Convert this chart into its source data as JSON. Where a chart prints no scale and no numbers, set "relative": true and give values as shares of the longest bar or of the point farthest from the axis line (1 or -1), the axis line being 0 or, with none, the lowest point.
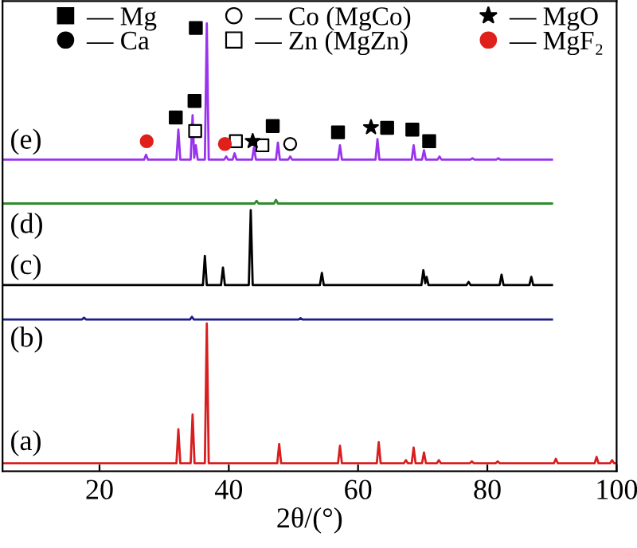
{
  "chart_data": {
    "type": "line",
    "relative": true,
    "xlabel": "2θ/(°)",
    "xlim": [
      5,
      100
    ],
    "xticks": [
      20,
      40,
      60,
      80,
      100
    ],
    "grid": false,
    "legend": "top",
    "tick_labels": "x",
    "series": [
      {
        "color": "#d81e1e",
        "x": [
          5,
          31.9,
          32.2,
          32.5,
          34.1,
          34.4,
          34.7,
          36.3,
          36.6,
          36.9,
          47.5,
          47.8,
          48.1,
          56.9,
          57.2,
          57.5,
          62.9,
          63.2,
          63.5,
          67.1,
          67.4,
          67.7,
          68.3,
          68.6,
          68.9,
          69.9,
          70.2,
          70.5,
          72.2,
          72.5,
          72.8,
          77.3,
          77.6,
          77.9,
          81.3,
          81.6,
          81.9,
          90.3,
          90.6,
          90.9,
          96.6,
          96.9,
          97.2,
          99.0,
          99.3,
          99.6,
          100
        ],
        "values": [
          0.018,
          0.018,
          0.094,
          0.018,
          0.018,
          0.127,
          0.018,
          0.018,
          0.33,
          0.018,
          0.018,
          0.061,
          0.018,
          0.018,
          0.057,
          0.018,
          0.018,
          0.065,
          0.018,
          0.018,
          0.025,
          0.018,
          0.018,
          0.053,
          0.018,
          0.018,
          0.042,
          0.018,
          0.018,
          0.025,
          0.018,
          0.018,
          0.022,
          0.018,
          0.018,
          0.022,
          0.018,
          0.018,
          0.028,
          0.018,
          0.018,
          0.032,
          0.018,
          0.018,
          0.025,
          0.018,
          0.018
        ]
      },
      {
        "color": "#1c1c8c",
        "x": [
          5,
          17.3,
          17.6,
          17.9,
          34.0,
          34.3,
          34.6,
          50.8,
          51.1,
          51.4,
          90
        ],
        "values": [
          0.339,
          0.339,
          0.343,
          0.339,
          0.339,
          0.345,
          0.339,
          0.339,
          0.342,
          0.339,
          0.339
        ]
      },
      {
        "color": "#000000",
        "x": [
          5,
          36.0,
          36.3,
          36.6,
          38.8,
          39.1,
          39.4,
          43.1,
          43.4,
          43.7,
          54.1,
          54.4,
          54.7,
          69.8,
          70.1,
          70.4,
          70.6,
          70.9,
          76.8,
          77.1,
          77.4,
          81.9,
          82.2,
          82.5,
          86.5,
          86.8,
          87.1,
          90
        ],
        "values": [
          0.416,
          0.416,
          0.481,
          0.416,
          0.416,
          0.455,
          0.416,
          0.416,
          0.583,
          0.416,
          0.416,
          0.443,
          0.416,
          0.416,
          0.449,
          0.42,
          0.434,
          0.416,
          0.416,
          0.423,
          0.416,
          0.416,
          0.439,
          0.416,
          0.416,
          0.434,
          0.416,
          0.416
        ]
      },
      {
        "color": "#2e8b2e",
        "x": [
          5,
          44.0,
          44.3,
          44.6,
          47.0,
          47.3,
          47.6,
          90
        ],
        "values": [
          0.598,
          0.598,
          0.604,
          0.598,
          0.598,
          0.606,
          0.598,
          0.598
        ]
      },
      {
        "color": "#9933ee",
        "x": [
          5,
          26.9,
          27.2,
          27.5,
          31.9,
          32.2,
          32.5,
          34.1,
          34.4,
          34.65,
          34.9,
          35.2,
          36.3,
          36.6,
          36.9,
          39.3,
          39.6,
          39.9,
          40.6,
          40.9,
          41.2,
          43.6,
          43.9,
          44.2,
          47.3,
          47.6,
          47.9,
          49.2,
          49.5,
          49.8,
          56.9,
          57.2,
          57.5,
          62.7,
          63.0,
          63.3,
          68.3,
          68.6,
          68.9,
          69.9,
          70.2,
          70.5,
          72.3,
          72.6,
          72.9,
          77.4,
          77.7,
          78.0,
          81.4,
          81.7,
          82.0,
          90
        ],
        "values": [
          0.696,
          0.696,
          0.707,
          0.696,
          0.696,
          0.763,
          0.696,
          0.696,
          0.795,
          0.7,
          0.728,
          0.696,
          0.696,
          1.0,
          0.696,
          0.696,
          0.703,
          0.696,
          0.696,
          0.71,
          0.696,
          0.696,
          0.724,
          0.696,
          0.696,
          0.734,
          0.696,
          0.696,
          0.703,
          0.696,
          0.696,
          0.728,
          0.696,
          0.696,
          0.742,
          0.696,
          0.696,
          0.728,
          0.696,
          0.696,
          0.717,
          0.696,
          0.696,
          0.703,
          0.696,
          0.696,
          0.699,
          0.696,
          0.696,
          0.699,
          0.696,
          0.696
        ]
      },
      {
        "type": "scatter",
        "name": "— Mg",
        "marker": "square",
        "color": "#000000",
        "x": [
          34.9,
          31.8,
          34.7,
          46.8,
          56.9,
          64.5,
          68.4,
          71.0
        ],
        "values": [
          0.99,
          0.79,
          0.827,
          0.771,
          0.757,
          0.767,
          0.763,
          0.737
        ]
      },
      {
        "type": "scatter",
        "name": "— Ca",
        "marker": "circle",
        "color": "#000000"
      },
      {
        "type": "scatter",
        "name": "— Co (MgCo)",
        "marker": "circle",
        "color": "#ffffff",
        "x": [
          49.5
        ],
        "values": [
          0.731
        ]
      },
      {
        "type": "scatter",
        "name": "— Zn (MgZn)",
        "marker": "square",
        "color": "#ffffff",
        "x": [
          34.8,
          41.1,
          45.2
        ],
        "values": [
          0.76,
          0.737,
          0.728
        ]
      },
      {
        "type": "scatter",
        "name": "— MgO",
        "marker": "star",
        "color": "#000000",
        "x": [
          43.7,
          62.0
        ],
        "values": [
          0.737,
          0.768
        ]
      },
      {
        "type": "scatter",
        "name": "— MgF₂",
        "marker": "circle",
        "color": "#e0201b",
        "x": [
          27.3,
          39.4
        ],
        "values": [
          0.737,
          0.731
        ]
      }
    ],
    "annotations": [
      "(a)",
      "(b)",
      "(c)",
      "(d)",
      "(e)"
    ]
  }
}
